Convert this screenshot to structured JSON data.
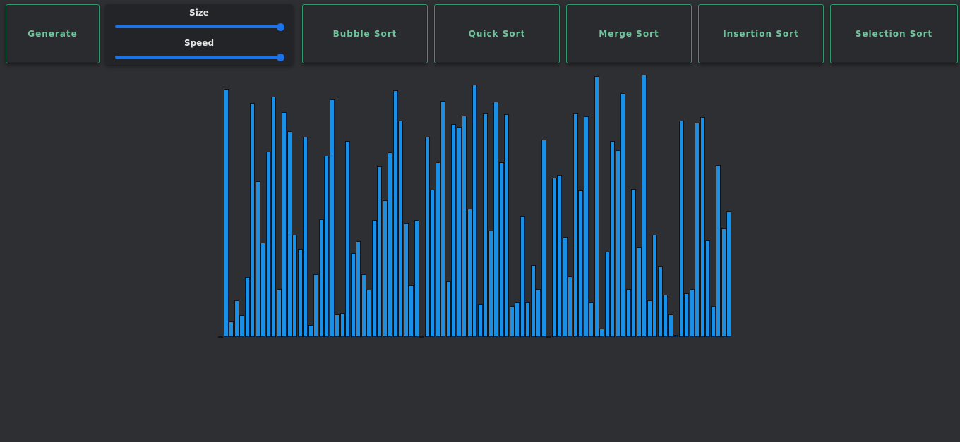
{
  "toolbar": {
    "generate_label": "Generate",
    "size_label": "Size",
    "speed_label": "Speed",
    "size_value": 1.0,
    "speed_value": 1.0,
    "bubble_label": "Bubble Sort",
    "quick_label": "Quick Sort",
    "merge_label": "Merge Sort",
    "insertion_label": "Insertion Sort",
    "selection_label": "Selection Sort"
  },
  "colors": {
    "background": "#2e2f32",
    "button_border": "#2f9a6e",
    "button_text": "#6ec49b",
    "slider": "#1a73e8",
    "bar": "#1a8fe6"
  },
  "array": {
    "values": [
      1,
      352,
      22,
      52,
      31,
      85,
      332,
      221,
      134,
      263,
      341,
      68,
      319,
      292,
      145,
      125,
      284,
      17,
      89,
      167,
      257,
      337,
      32,
      34,
      278,
      119,
      136,
      89,
      67,
      166,
      242,
      194,
      262,
      350,
      307,
      161,
      74,
      166,
      0,
      284,
      209,
      248,
      335,
      79,
      302,
      298,
      314,
      182,
      358,
      47,
      317,
      151,
      334,
      248,
      316,
      44,
      49,
      171,
      49,
      102,
      68,
      280,
      0,
      226,
      230,
      142,
      86,
      317,
      208,
      313,
      49,
      370,
      12,
      121,
      278,
      265,
      346,
      68,
      210,
      127,
      372,
      52,
      145,
      100,
      60,
      32,
      3,
      307,
      62,
      68,
      304,
      312,
      137,
      44,
      244,
      154,
      178
    ]
  }
}
